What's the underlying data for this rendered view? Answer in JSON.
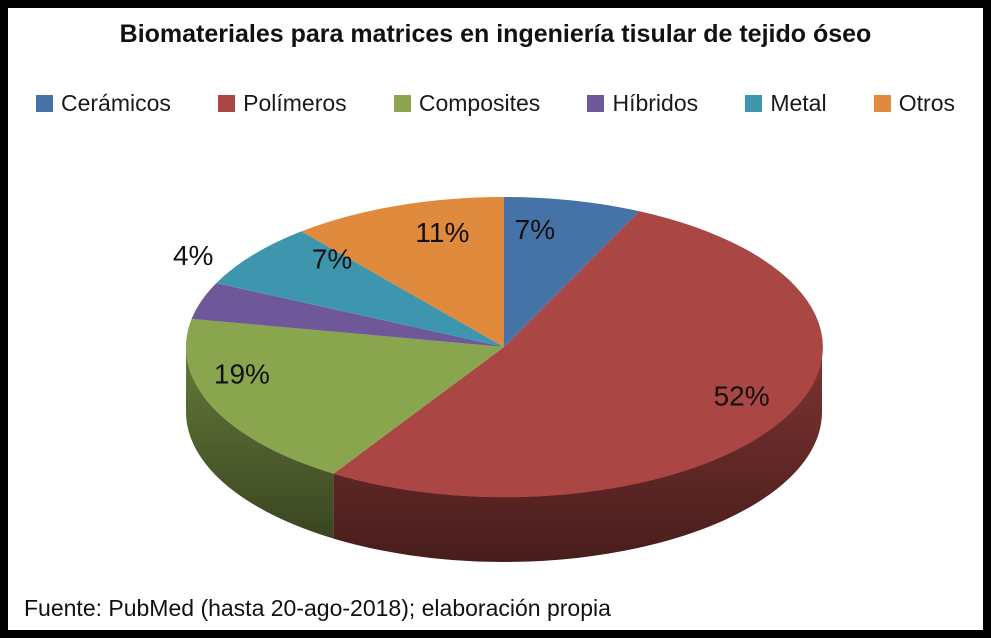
{
  "chart_data": {
    "type": "pie",
    "style": "3d",
    "title": "Biomateriales para matrices en ingeniería tisular de tejido óseo",
    "categories": [
      "Cerámicos",
      "Polímeros",
      "Composites",
      "Híbridos",
      "Metal",
      "Otros"
    ],
    "values": [
      7,
      52,
      19,
      4,
      7,
      11
    ],
    "labels": [
      "7%",
      "52%",
      "19%",
      "4%",
      "7%",
      "11%"
    ],
    "colors": [
      "#4572A7",
      "#AA4643",
      "#89A54E",
      "#6E5899",
      "#3D96AE",
      "#DF8A3D"
    ],
    "start_angle_deg": 0,
    "direction": "clockwise",
    "legend_position": "top",
    "source_note": "Fuente: PubMed (hasta 20-ago-2018); elaboración propia"
  }
}
